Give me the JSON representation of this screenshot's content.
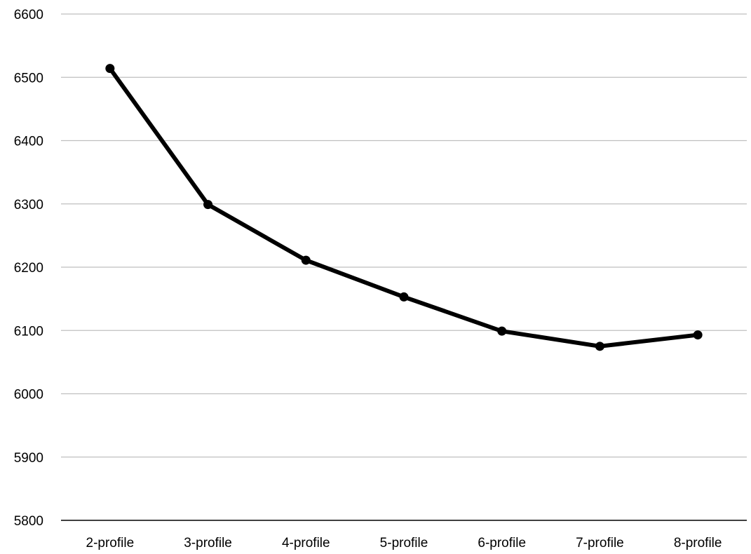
{
  "chart_data": {
    "type": "line",
    "title": "",
    "xlabel": "",
    "ylabel": "",
    "categories": [
      "2-profile",
      "3-profile",
      "4-profile",
      "5-profile",
      "6-profile",
      "7-profile",
      "8-profile"
    ],
    "series": [
      {
        "values": [
          6514,
          6299,
          6211,
          6153,
          6099,
          6075,
          6093
        ],
        "color": "#000000"
      }
    ],
    "ylim": [
      5800,
      6600
    ],
    "yticks": [
      "5800",
      "5900",
      "6000",
      "6100",
      "6200",
      "6300",
      "6400",
      "6500",
      "6600"
    ],
    "grid": true,
    "legend": "none",
    "colors": {
      "line": "#000000",
      "marker": "#000000",
      "gridline": "#bfbfbf",
      "axis": "#000000"
    }
  }
}
